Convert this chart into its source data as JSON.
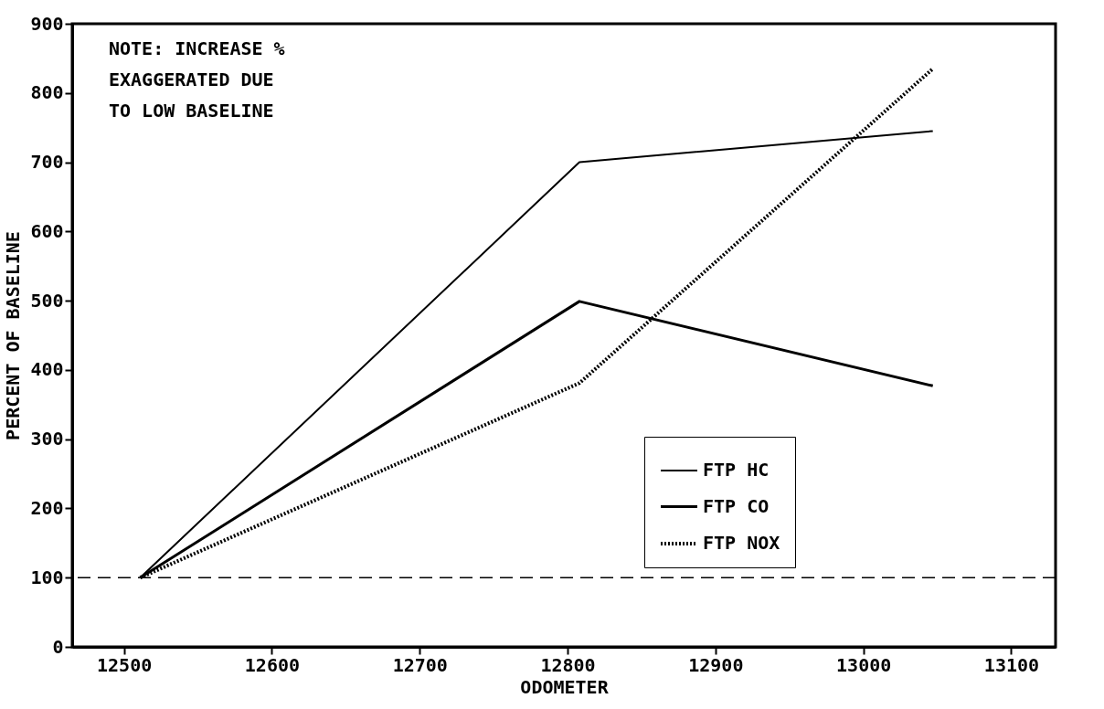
{
  "chart_data": {
    "type": "line",
    "xlabel": "ODOMETER",
    "ylabel": "PERCENT OF BASELINE",
    "x": [
      12511,
      12808,
      13047
    ],
    "series": [
      {
        "name": "FTP HC",
        "color": "#000000",
        "line_style": "solid",
        "values": [
          100,
          700,
          745
        ]
      },
      {
        "name": "FTP CO",
        "color": "#000000",
        "line_style": "solid",
        "values": [
          100,
          499,
          377
        ]
      },
      {
        "name": "FTP NOX",
        "color": "#000000",
        "line_style": "dotted",
        "values": [
          100,
          381,
          835
        ]
      }
    ],
    "xlim": [
      12465,
      13130
    ],
    "xticks": [
      12500,
      12600,
      12700,
      12800,
      12900,
      13000,
      13100
    ],
    "ylim": [
      0,
      900
    ],
    "yticks": [
      0,
      100,
      200,
      300,
      400,
      500,
      600,
      700,
      800,
      900
    ],
    "ref_lines": [
      {
        "axis": "y",
        "value": 100,
        "line_style": "dashed"
      }
    ],
    "annotations": [
      "NOTE: INCREASE %\nEXAGGERATED DUE\nTO LOW BASELINE"
    ],
    "legend": "bottom right",
    "grid": false,
    "marker": "none"
  }
}
